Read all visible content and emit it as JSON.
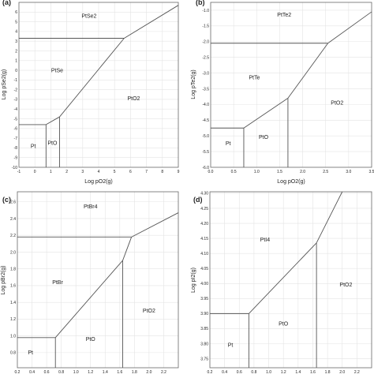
{
  "chart_data": [
    {
      "type": "phase-diagram",
      "panel": "(a)",
      "xlabel": "Log pO2(g)",
      "ylabel": "Log pSe2(g)",
      "xlim": [
        -1,
        9
      ],
      "ylim": [
        -10,
        7
      ],
      "x_ticks": [
        -1,
        0,
        1,
        2,
        3,
        4,
        5,
        6,
        7,
        8,
        9
      ],
      "y_ticks": [
        -10,
        -9,
        -8,
        -7,
        -6,
        -5,
        -4,
        -3,
        -2,
        -1,
        0,
        1,
        2,
        3,
        4,
        5,
        6
      ],
      "boundaries": [
        [
          [
            -1,
            -5.6
          ],
          [
            0.7,
            -5.6
          ]
        ],
        [
          [
            0.7,
            -10
          ],
          [
            0.7,
            -5.6
          ]
        ],
        [
          [
            0.7,
            -5.6
          ],
          [
            1.55,
            -4.8
          ]
        ],
        [
          [
            1.55,
            -10
          ],
          [
            1.55,
            -4.8
          ]
        ],
        [
          [
            1.55,
            -4.8
          ],
          [
            5.6,
            3.3
          ]
        ],
        [
          [
            -1,
            3.3
          ],
          [
            5.6,
            3.3
          ]
        ],
        [
          [
            5.6,
            3.3
          ],
          [
            9,
            6.7
          ]
        ]
      ],
      "regions": [
        {
          "label": "PtSe2",
          "x": 3.4,
          "y": 5.4
        },
        {
          "label": "PtSe",
          "x": 1.4,
          "y": -0.2
        },
        {
          "label": "PtO2",
          "x": 6.2,
          "y": -3.1
        },
        {
          "label": "Pt",
          "x": -0.1,
          "y": -8.0
        },
        {
          "label": "PtO",
          "x": 1.1,
          "y": -7.7
        }
      ]
    },
    {
      "type": "phase-diagram",
      "panel": "(b)",
      "xlabel": "Log pO2(g)",
      "ylabel": "Log pTe2(g)",
      "xlim": [
        0,
        3.5
      ],
      "ylim": [
        -6,
        -0.75
      ],
      "x_ticks": [
        0.0,
        0.5,
        1.0,
        1.5,
        2.0,
        2.5,
        3.0,
        3.5
      ],
      "x_tick_labels": [
        "0.0",
        "0.5",
        "1.0",
        "1.5",
        "2.0",
        "2.5",
        "3.0",
        "3.5"
      ],
      "y_ticks": [
        -6.0,
        -5.5,
        -5.0,
        -4.5,
        -4.0,
        -3.5,
        -3.0,
        -2.5,
        -2.0,
        -1.5,
        -1.0
      ],
      "y_tick_labels": [
        "-6.0",
        "-5.5",
        "-5.0",
        "-4.5",
        "-4.0",
        "-3.5",
        "-3.0",
        "-2.5",
        "-2.0",
        "-1.5",
        "-1.0"
      ],
      "boundaries": [
        [
          [
            0,
            -4.75
          ],
          [
            0.72,
            -4.75
          ]
        ],
        [
          [
            0.72,
            -6
          ],
          [
            0.72,
            -4.75
          ]
        ],
        [
          [
            0.72,
            -4.75
          ],
          [
            1.68,
            -3.8
          ]
        ],
        [
          [
            1.68,
            -6
          ],
          [
            1.68,
            -3.8
          ]
        ],
        [
          [
            1.68,
            -3.8
          ],
          [
            2.55,
            -2.05
          ]
        ],
        [
          [
            0,
            -2.05
          ],
          [
            2.55,
            -2.05
          ]
        ],
        [
          [
            2.55,
            -2.05
          ],
          [
            3.5,
            -1.05
          ]
        ]
      ],
      "regions": [
        {
          "label": "PtTe2",
          "x": 1.6,
          "y": -1.2
        },
        {
          "label": "PtTe",
          "x": 0.95,
          "y": -3.2
        },
        {
          "label": "PtO2",
          "x": 2.75,
          "y": -4.0
        },
        {
          "label": "Pt",
          "x": 0.38,
          "y": -5.3
        },
        {
          "label": "PtO",
          "x": 1.15,
          "y": -5.1
        }
      ]
    },
    {
      "type": "phase-diagram",
      "panel": "(c)",
      "xlabel": "",
      "ylabel": "Log pBr2(g)",
      "xlim": [
        0.2,
        2.4
      ],
      "ylim": [
        0.62,
        2.72
      ],
      "x_ticks": [
        0.2,
        0.4,
        0.6,
        0.8,
        1.0,
        1.2,
        1.4,
        1.6,
        1.8,
        2.0,
        2.2
      ],
      "x_tick_labels": [
        "0.2",
        "0.4",
        "0.6",
        "0.8",
        "1.0",
        "1.2",
        "1.4",
        "1.6",
        "1.8",
        "2.0",
        "2.2"
      ],
      "y_ticks": [
        0.8,
        1.0,
        1.2,
        1.4,
        1.6,
        1.8,
        2.0,
        2.2,
        2.4,
        2.6
      ],
      "y_tick_labels": [
        "0.8",
        "1.0",
        "1.2",
        "1.4",
        "1.6",
        "1.8",
        "2.0",
        "2.2",
        "2.4",
        "2.6"
      ],
      "boundaries": [
        [
          [
            0.2,
            0.98
          ],
          [
            0.72,
            0.98
          ]
        ],
        [
          [
            0.72,
            0.62
          ],
          [
            0.72,
            0.98
          ]
        ],
        [
          [
            0.72,
            0.98
          ],
          [
            1.64,
            1.9
          ]
        ],
        [
          [
            1.64,
            0.62
          ],
          [
            1.64,
            1.9
          ]
        ],
        [
          [
            1.64,
            1.9
          ],
          [
            1.76,
            2.18
          ]
        ],
        [
          [
            0.2,
            2.18
          ],
          [
            1.76,
            2.18
          ]
        ],
        [
          [
            1.76,
            2.18
          ],
          [
            2.4,
            2.47
          ]
        ]
      ],
      "regions": [
        {
          "label": "PtBr4",
          "x": 1.2,
          "y": 2.52
        },
        {
          "label": "PtBr",
          "x": 0.75,
          "y": 1.62
        },
        {
          "label": "PtO2",
          "x": 2.0,
          "y": 1.28
        },
        {
          "label": "Pt",
          "x": 0.38,
          "y": 0.78
        },
        {
          "label": "PtO",
          "x": 1.2,
          "y": 0.94
        }
      ]
    },
    {
      "type": "phase-diagram",
      "panel": "(d)",
      "xlabel": "",
      "ylabel": "Log pI2(g)",
      "xlim": [
        0.2,
        2.4
      ],
      "ylim": [
        3.72,
        4.305
      ],
      "x_ticks": [
        0.2,
        0.4,
        0.6,
        0.8,
        1.0,
        1.2,
        1.4,
        1.6,
        1.8,
        2.0,
        2.2
      ],
      "x_tick_labels": [
        "0.2",
        "0.4",
        "0.6",
        "0.8",
        "1.0",
        "1.2",
        "1.4",
        "1.6",
        "1.8",
        "2.0",
        "2.2"
      ],
      "y_ticks": [
        3.75,
        3.8,
        3.85,
        3.9,
        3.95,
        4.0,
        4.05,
        4.1,
        4.15,
        4.2,
        4.25,
        4.3
      ],
      "y_tick_labels": [
        "3.75",
        "3.80",
        "3.85",
        "3.90",
        "3.95",
        "4.00",
        "4.05",
        "4.10",
        "4.15",
        "4.20",
        "4.25",
        "4.30"
      ],
      "boundaries": [
        [
          [
            0.2,
            3.9
          ],
          [
            0.73,
            3.9
          ]
        ],
        [
          [
            0.73,
            3.72
          ],
          [
            0.73,
            3.9
          ]
        ],
        [
          [
            0.73,
            3.9
          ],
          [
            1.65,
            4.135
          ]
        ],
        [
          [
            1.65,
            3.72
          ],
          [
            1.65,
            4.135
          ]
        ],
        [
          [
            1.65,
            4.135
          ],
          [
            2.0,
            4.305
          ]
        ]
      ],
      "regions": [
        {
          "label": "PtI4",
          "x": 0.95,
          "y": 4.14
        },
        {
          "label": "PtO2",
          "x": 2.05,
          "y": 3.99
        },
        {
          "label": "PtO",
          "x": 1.2,
          "y": 3.86
        },
        {
          "label": "Pt",
          "x": 0.48,
          "y": 3.79
        }
      ]
    }
  ]
}
